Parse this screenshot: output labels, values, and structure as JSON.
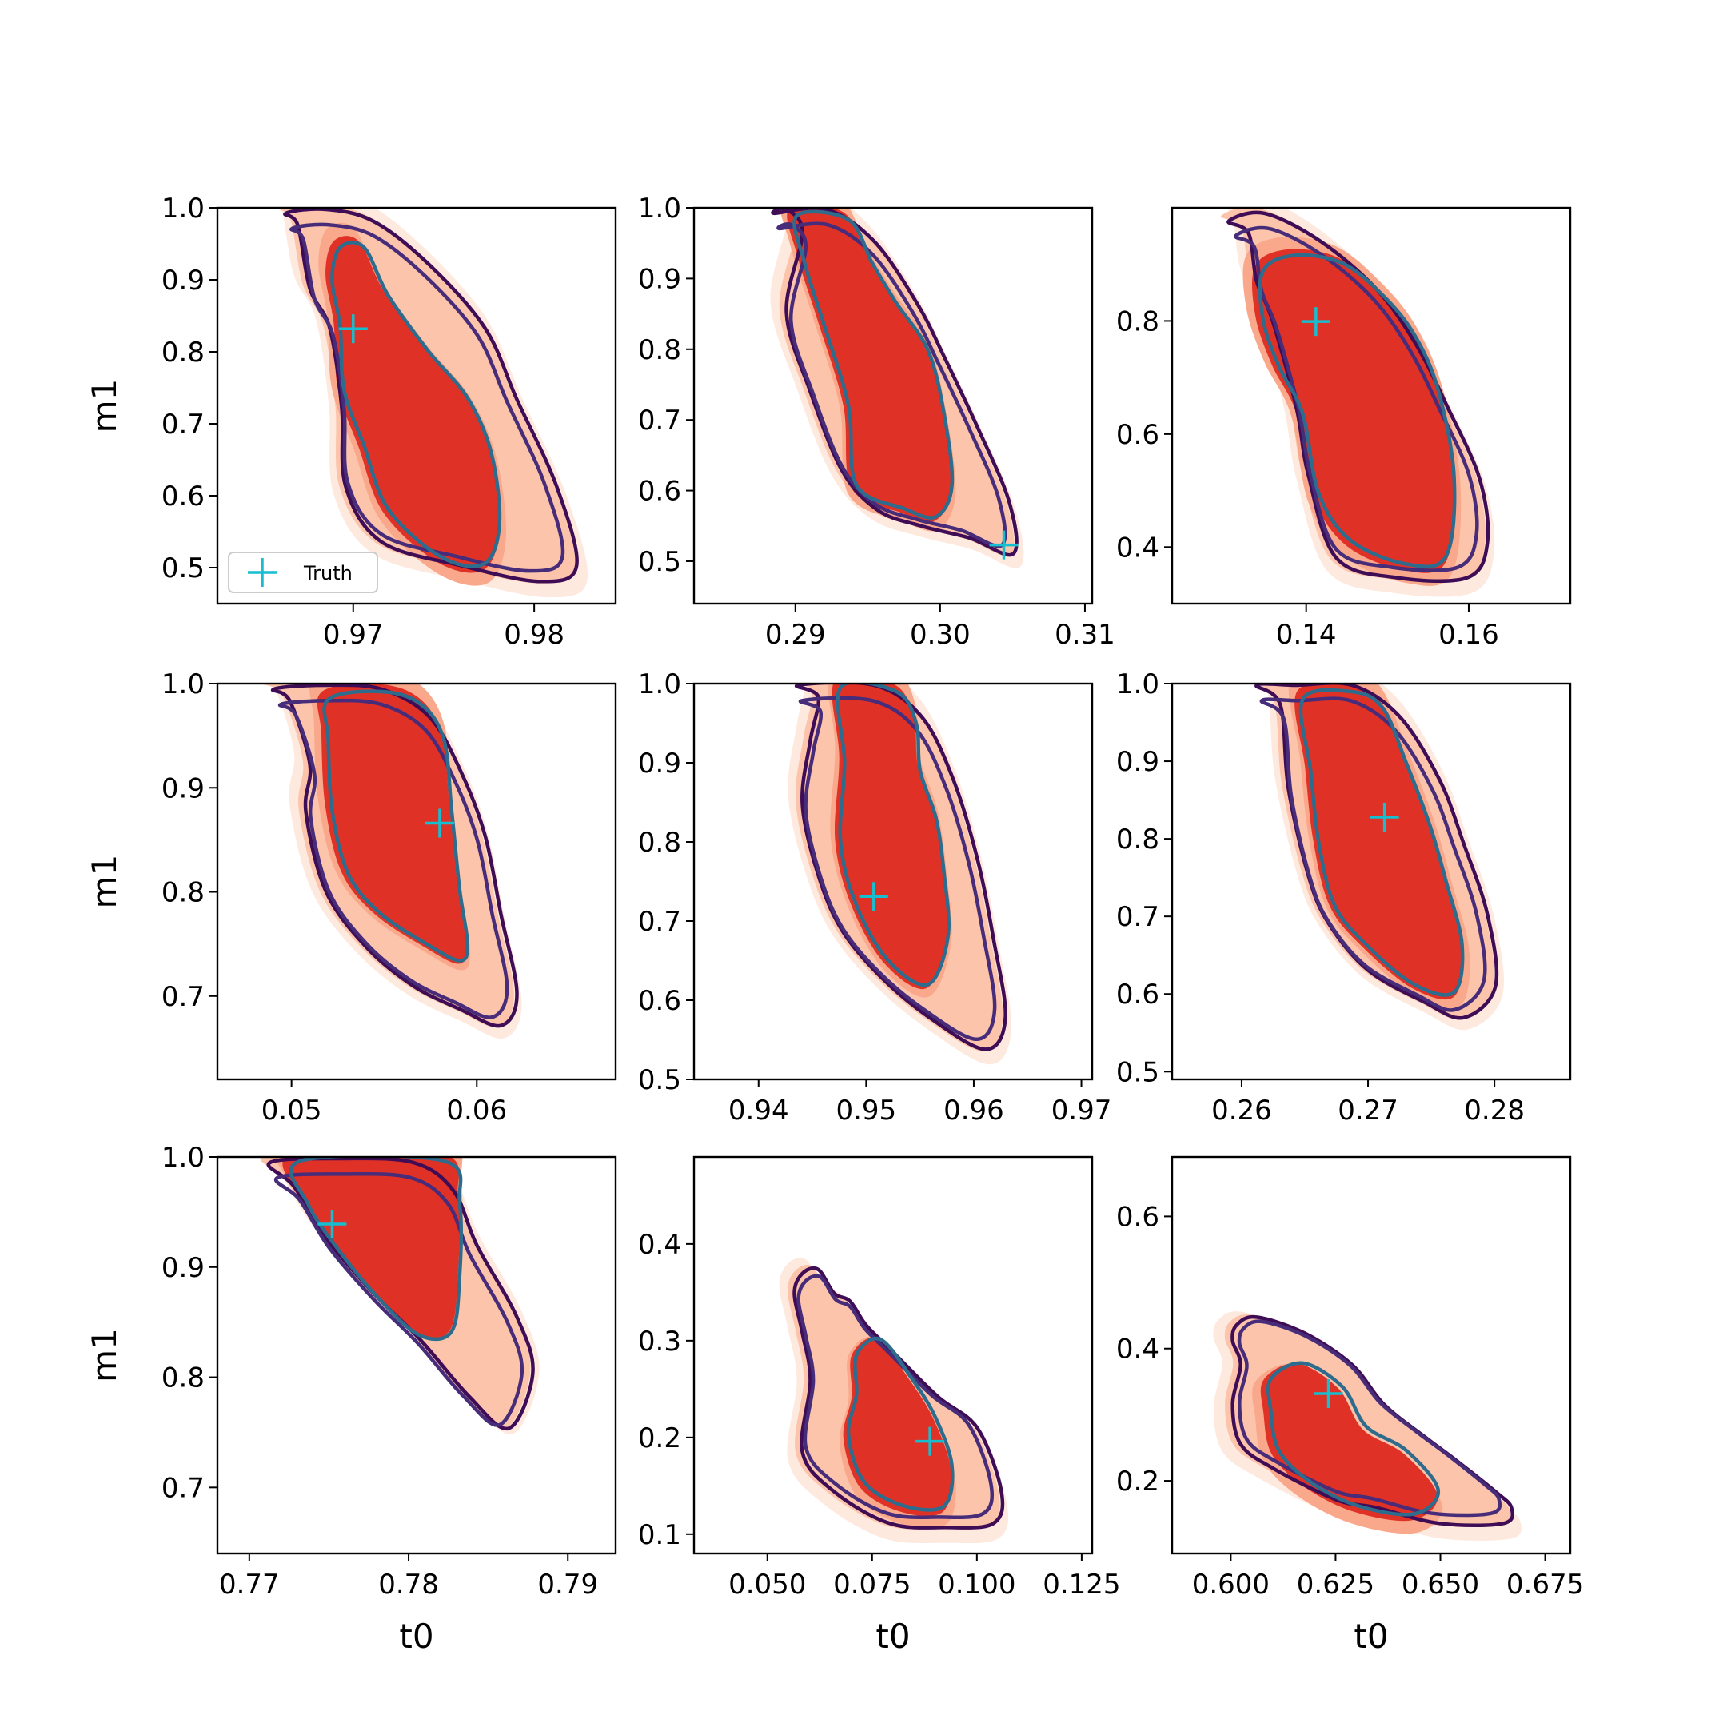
{
  "chart_data": [
    {
      "type": "contour",
      "xlabel": "",
      "ylabel": "m1",
      "xlim": [
        0.9625,
        0.9845
      ],
      "ylim": [
        0.45,
        1.0
      ],
      "xticks": [
        0.97,
        0.98
      ],
      "xtick_labels": [
        "0.97",
        "0.98"
      ],
      "yticks": [
        0.5,
        0.6,
        0.7,
        0.8,
        0.9,
        1.0
      ],
      "ytick_labels": [
        "0.5",
        "0.6",
        "0.7",
        "0.8",
        "0.9",
        "1.0"
      ],
      "truth": [
        0.97,
        0.832
      ],
      "legend": {
        "label": "Truth",
        "position": "lower-left"
      }
    },
    {
      "type": "contour",
      "xlabel": "",
      "ylabel": "",
      "xlim": [
        0.283,
        0.3105
      ],
      "ylim": [
        0.44,
        1.0
      ],
      "xticks": [
        0.29,
        0.3,
        0.31
      ],
      "xtick_labels": [
        "0.29",
        "0.30",
        "0.31"
      ],
      "yticks": [
        0.5,
        0.6,
        0.7,
        0.8,
        0.9,
        1.0
      ],
      "ytick_labels": [
        "0.5",
        "0.6",
        "0.7",
        "0.8",
        "0.9",
        "1.0"
      ],
      "truth": [
        0.3044,
        0.523
      ]
    },
    {
      "type": "contour",
      "xlabel": "",
      "ylabel": "",
      "xlim": [
        0.1235,
        0.1725
      ],
      "ylim": [
        0.3,
        1.0
      ],
      "xticks": [
        0.14,
        0.16
      ],
      "xtick_labels": [
        "0.14",
        "0.16"
      ],
      "yticks": [
        0.4,
        0.6,
        0.8
      ],
      "ytick_labels": [
        "0.4",
        "0.6",
        "0.8"
      ],
      "truth": [
        0.1412,
        0.799
      ]
    },
    {
      "type": "contour",
      "xlabel": "",
      "ylabel": "m1",
      "xlim": [
        0.046,
        0.0675
      ],
      "ylim": [
        0.62,
        1.0
      ],
      "xticks": [
        0.05,
        0.06
      ],
      "xtick_labels": [
        "0.05",
        "0.06"
      ],
      "yticks": [
        0.7,
        0.8,
        0.9,
        1.0
      ],
      "ytick_labels": [
        "0.7",
        "0.8",
        "0.9",
        "1.0"
      ],
      "truth": [
        0.058,
        0.866
      ]
    },
    {
      "type": "contour",
      "xlabel": "",
      "ylabel": "",
      "xlim": [
        0.934,
        0.971
      ],
      "ylim": [
        0.5,
        1.0
      ],
      "xticks": [
        0.94,
        0.95,
        0.96,
        0.97
      ],
      "xtick_labels": [
        "0.94",
        "0.95",
        "0.96",
        "0.97"
      ],
      "yticks": [
        0.5,
        0.6,
        0.7,
        0.8,
        0.9,
        1.0
      ],
      "ytick_labels": [
        "0.5",
        "0.6",
        "0.7",
        "0.8",
        "0.9",
        "1.0"
      ],
      "truth": [
        0.9507,
        0.731
      ]
    },
    {
      "type": "contour",
      "xlabel": "",
      "ylabel": "",
      "xlim": [
        0.2545,
        0.286
      ],
      "ylim": [
        0.49,
        1.0
      ],
      "xticks": [
        0.26,
        0.27,
        0.28
      ],
      "xtick_labels": [
        "0.26",
        "0.27",
        "0.28"
      ],
      "yticks": [
        0.5,
        0.6,
        0.7,
        0.8,
        0.9,
        1.0
      ],
      "ytick_labels": [
        "0.5",
        "0.6",
        "0.7",
        "0.8",
        "0.9",
        "1.0"
      ],
      "truth": [
        0.2713,
        0.828
      ]
    },
    {
      "type": "contour",
      "xlabel": "t0",
      "ylabel": "m1",
      "xlim": [
        0.768,
        0.793
      ],
      "ylim": [
        0.64,
        1.0
      ],
      "xticks": [
        0.77,
        0.78,
        0.79
      ],
      "xtick_labels": [
        "0.77",
        "0.78",
        "0.79"
      ],
      "yticks": [
        0.7,
        0.8,
        0.9,
        1.0
      ],
      "ytick_labels": [
        "0.7",
        "0.8",
        "0.9",
        "1.0"
      ],
      "truth": [
        0.7752,
        0.939
      ]
    },
    {
      "type": "contour",
      "xlabel": "t0",
      "ylabel": "",
      "xlim": [
        0.0325,
        0.1275
      ],
      "ylim": [
        0.08,
        0.49
      ],
      "xticks": [
        0.05,
        0.075,
        0.1,
        0.125
      ],
      "xtick_labels": [
        "0.050",
        "0.075",
        "0.100",
        "0.125"
      ],
      "yticks": [
        0.1,
        0.2,
        0.3,
        0.4
      ],
      "ytick_labels": [
        "0.1",
        "0.2",
        "0.3",
        "0.4"
      ],
      "truth": [
        0.0888,
        0.196
      ]
    },
    {
      "type": "contour",
      "xlabel": "t0",
      "ylabel": "",
      "xlim": [
        0.586,
        0.681
      ],
      "ylim": [
        0.09,
        0.69
      ],
      "xticks": [
        0.6,
        0.625,
        0.65,
        0.675
      ],
      "xtick_labels": [
        "0.600",
        "0.625",
        "0.650",
        "0.675"
      ],
      "yticks": [
        0.2,
        0.4,
        0.6
      ],
      "ytick_labels": [
        "0.2",
        "0.4",
        "0.6"
      ],
      "truth": [
        0.6233,
        0.332
      ]
    }
  ]
}
